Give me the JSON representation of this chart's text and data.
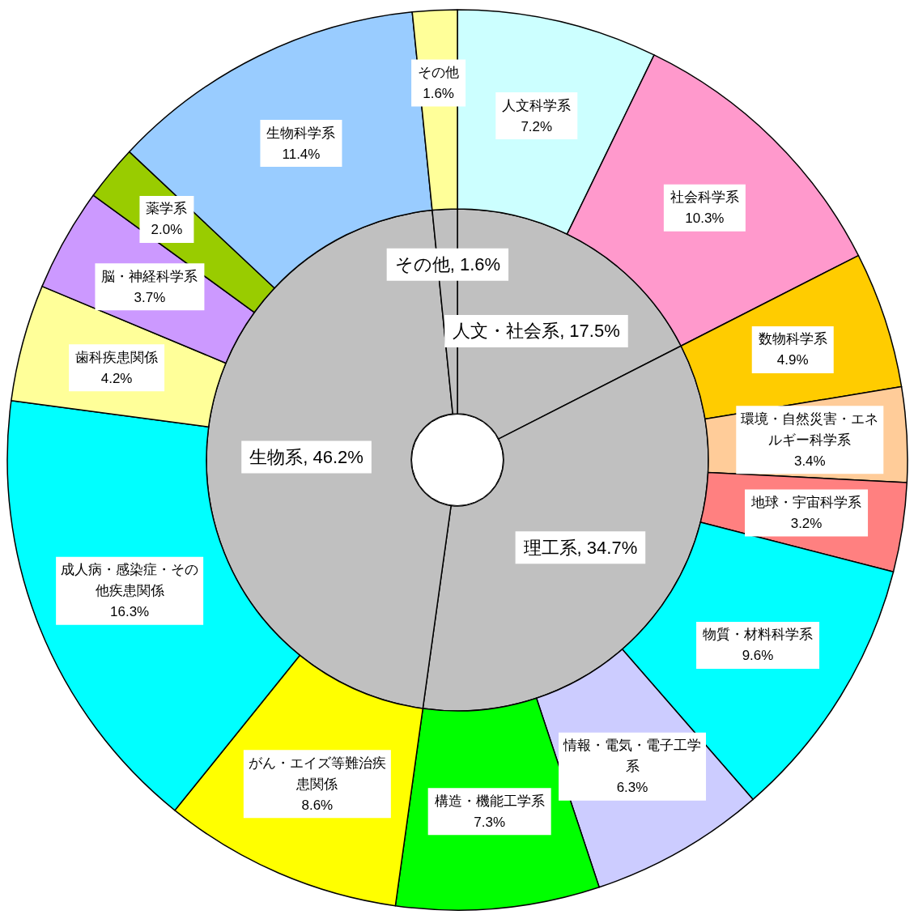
{
  "chart_data": [
    {
      "type": "donut",
      "categories": [
        "人文・社会系",
        "理工系",
        "生物系",
        "その他"
      ],
      "values": [
        17.5,
        34.7,
        46.2,
        1.6
      ],
      "value_labels": [
        "17.5%",
        "34.7%",
        "46.2%",
        "1.6%"
      ],
      "colors": [
        "#c0c0c0",
        "#c0c0c0",
        "#c0c0c0",
        "#c0c0c0"
      ]
    },
    {
      "type": "donut",
      "categories": [
        "人文科学系",
        "社会科学系",
        "数物科学系",
        "環境・自然災害・エネルギー科学系",
        "地球・宇宙科学系",
        "物質・材料科学系",
        "情報・電気・電子工学系",
        "構造・機能工学系",
        "がん・エイズ等難治疾患関係",
        "成人病・感染症・その他疾患関係",
        "歯科疾患関係",
        "脳・神経科学系",
        "薬学系",
        "生物科学系",
        "その他"
      ],
      "values": [
        7.2,
        10.3,
        4.9,
        3.4,
        3.2,
        9.6,
        6.3,
        7.3,
        8.6,
        16.3,
        4.2,
        3.7,
        2.0,
        11.4,
        1.6
      ],
      "value_labels": [
        "7.2%",
        "10.3%",
        "4.9%",
        "3.4%",
        "3.2%",
        "9.6%",
        "6.3%",
        "7.3%",
        "8.6%",
        "16.3%",
        "4.2%",
        "3.7%",
        "2.0%",
        "11.4%",
        "1.6%"
      ],
      "colors": [
        "#ccffff",
        "#ff99cc",
        "#ffcc00",
        "#ffcc99",
        "#ff8080",
        "#00ffff",
        "#ccccff",
        "#00ff00",
        "#ffff00",
        "#00ffff",
        "#ffff99",
        "#cc99ff",
        "#99cc00",
        "#99ccff",
        "#ffff99"
      ]
    }
  ]
}
